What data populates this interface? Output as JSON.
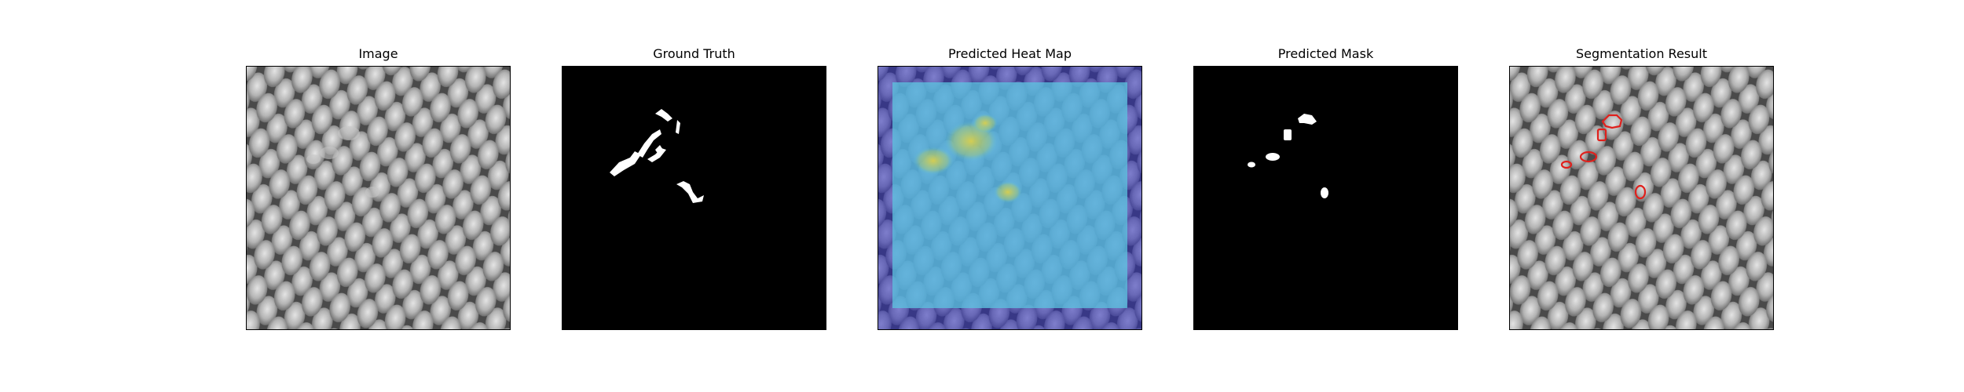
{
  "figure": {
    "panels": [
      {
        "title": "Image",
        "content": "grayscale-mesh-texture"
      },
      {
        "title": "Ground Truth",
        "content": "binary-defect-mask"
      },
      {
        "title": "Predicted Heat Map",
        "content": "jet-heatmap-overlay"
      },
      {
        "title": "Predicted Mask",
        "content": "binary-predicted-mask"
      },
      {
        "title": "Segmentation Result",
        "content": "mesh-with-red-contours"
      }
    ],
    "colors": {
      "mask_foreground": "#ffffff",
      "mask_background": "#000000",
      "contour": "#e0201c",
      "heatmap_low": "#3b3bb0",
      "heatmap_mid": "#5cc6e0",
      "heatmap_high": "#d4c244"
    }
  }
}
